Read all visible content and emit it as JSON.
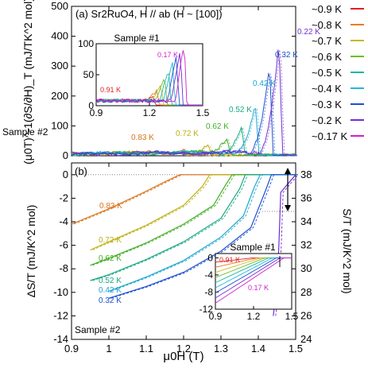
{
  "chart_data": [
    {
      "type": "line",
      "panel": "(a)",
      "title": "Sr2RuO4, H // ab (H ~ [100])",
      "ylabel": "(μ0T)^-1(∂S/∂H)_T (mJ/TK^2 mol)",
      "xlim": [
        0.9,
        1.5
      ],
      "ylim": [
        0,
        500
      ],
      "yticks": [
        0,
        100,
        200,
        300,
        400,
        500
      ],
      "x_ticks": [
        0.9,
        1,
        1.1,
        1.2,
        1.3,
        1.4,
        1.5
      ],
      "sample_label": "Sample #2",
      "series": [
        {
          "name": "~0.83 K",
          "color": "#d9731a",
          "peak_x": 1.2,
          "peak_y": 20
        },
        {
          "name": "~0.72 K",
          "color": "#bdb012",
          "peak_x": 1.265,
          "peak_y": 35
        },
        {
          "name": "~0.62 K",
          "color": "#3fae24",
          "peak_x": 1.315,
          "peak_y": 60
        },
        {
          "name": "~0.52 K",
          "color": "#1aa882",
          "peak_x": 1.355,
          "peak_y": 100
        },
        {
          "name": "~0.42 K",
          "color": "#1ca6cf",
          "peak_x": 1.392,
          "peak_y": 170
        },
        {
          "name": "~0.32 K",
          "color": "#1f4fd0",
          "peak_x": 1.43,
          "peak_y": 300
        },
        {
          "name": "~0.22 K",
          "color": "#6f2fd0",
          "peak_x": 1.455,
          "peak_y": 380
        }
      ],
      "annotations": [
        {
          "text": "0.83 K",
          "color": "#d9731a"
        },
        {
          "text": "0.72 K",
          "color": "#bdb012"
        },
        {
          "text": "0.62 K",
          "color": "#3fae24"
        },
        {
          "text": "0.52 K",
          "color": "#1aa882"
        },
        {
          "text": "0.42 K",
          "color": "#1ca6cf"
        },
        {
          "text": "0.32 K",
          "color": "#1f4fd0"
        },
        {
          "text": "0.22 K",
          "color": "#6f2fd0"
        }
      ],
      "inset": {
        "label": "Sample #1",
        "xlim": [
          0.9,
          1.5
        ],
        "ylim": [
          0,
          100
        ],
        "xticks": [
          0.9,
          1.2,
          1.5
        ],
        "yticks": [
          0,
          50,
          100
        ],
        "annotations": [
          {
            "text": "0.91 K",
            "color": "#e02020"
          },
          {
            "text": "0.17 K",
            "color": "#d020d0"
          }
        ]
      }
    },
    {
      "type": "line",
      "panel": "(b)",
      "xlabel": "μ0H (T)",
      "ylabel": "ΔS/T (mJ/K^2 mol)",
      "ylabel_right": "S/T (mJ/K^2 mol)",
      "xlim": [
        0.9,
        1.5
      ],
      "ylim": [
        -14,
        1
      ],
      "yticks": [
        0,
        -2,
        -4,
        -6,
        -8,
        -10,
        -12,
        -14
      ],
      "yticks_right": [
        38,
        36,
        34,
        32,
        30,
        28,
        26,
        24
      ],
      "x_ticks": [
        0.9,
        1,
        1.1,
        1.2,
        1.3,
        1.4,
        1.5
      ],
      "sample_label": "Sample #2",
      "series": [
        {
          "name": "0.83 K",
          "color": "#d9731a",
          "x": [
            0.9,
            1.0,
            1.1,
            1.15,
            1.19,
            1.5
          ],
          "y": [
            -4.2,
            -2.9,
            -1.4,
            -0.6,
            0,
            0
          ]
        },
        {
          "name": "0.72 K",
          "color": "#bdb012",
          "x": [
            0.95,
            1.0,
            1.1,
            1.2,
            1.25,
            1.27,
            1.5
          ],
          "y": [
            -6.4,
            -5.7,
            -4.3,
            -2.6,
            -1.0,
            0,
            0
          ]
        },
        {
          "name": "0.62 K",
          "color": "#3fae24",
          "x": [
            0.95,
            1.0,
            1.1,
            1.2,
            1.28,
            1.31,
            1.33,
            1.5
          ],
          "y": [
            -7.7,
            -7.1,
            -5.8,
            -4.2,
            -2.6,
            -1.0,
            0,
            0
          ]
        },
        {
          "name": "0.52 K",
          "color": "#1aa882",
          "x": [
            0.95,
            1.0,
            1.1,
            1.2,
            1.3,
            1.35,
            1.365,
            1.5
          ],
          "y": [
            -9.0,
            -8.5,
            -7.2,
            -5.7,
            -3.7,
            -1.2,
            0,
            0
          ]
        },
        {
          "name": "0.42 K",
          "color": "#1ca6cf",
          "x": [
            1.0,
            1.1,
            1.2,
            1.3,
            1.36,
            1.39,
            1.405,
            1.5
          ],
          "y": [
            -9.9,
            -8.7,
            -7.3,
            -5.3,
            -3.5,
            -1.0,
            0,
            0
          ]
        },
        {
          "name": "0.32 K",
          "color": "#1f4fd0",
          "x": [
            1.0,
            1.1,
            1.2,
            1.3,
            1.38,
            1.42,
            1.435,
            1.5
          ],
          "y": [
            -10.5,
            -9.5,
            -8.3,
            -6.5,
            -4.5,
            -1.3,
            0,
            0
          ]
        },
        {
          "name": "0.22 K",
          "color": "#6f2fd0",
          "x": [
            1.44,
            1.45,
            1.455,
            1.46,
            1.5
          ],
          "y": [
            -12.0,
            -9.5,
            -6.0,
            -1.5,
            0
          ]
        }
      ],
      "annotations": [
        {
          "text": "0.83 K",
          "color": "#d9731a"
        },
        {
          "text": "0.72 K",
          "color": "#bdb012"
        },
        {
          "text": "0.62 K",
          "color": "#3fae24"
        },
        {
          "text": "0.52 K",
          "color": "#1aa882"
        },
        {
          "text": "0.42 K",
          "color": "#1ca6cf"
        },
        {
          "text": "0.32 K",
          "color": "#1f4fd0"
        },
        {
          "text": "0.22 K",
          "color": "#6f2fd0"
        }
      ],
      "inset": {
        "label": "Sample #1",
        "xlim": [
          0.9,
          1.5
        ],
        "ylim": [
          -12,
          1
        ],
        "xticks": [
          0.9,
          1.2,
          1.5
        ],
        "yticks": [
          0,
          -4,
          -8,
          -12
        ],
        "annotations": [
          {
            "text": "0.91 K",
            "color": "#e02020"
          },
          {
            "text": "0.17 K",
            "color": "#d020d0"
          }
        ]
      }
    }
  ],
  "legend": {
    "placement": "right",
    "entries": [
      {
        "name": "~0.9 K",
        "color": "#e02020"
      },
      {
        "name": "~0.8 K",
        "color": "#e87c1a"
      },
      {
        "name": "~0.7 K",
        "color": "#c8b82a"
      },
      {
        "name": "~0.6 K",
        "color": "#6cbf2a"
      },
      {
        "name": "~0.5 K",
        "color": "#1fb7a0"
      },
      {
        "name": "~0.4 K",
        "color": "#1fb8d8"
      },
      {
        "name": "~0.3 K",
        "color": "#1f4fd0"
      },
      {
        "name": "~0.2 K",
        "color": "#6f2fd0"
      },
      {
        "name": "~0.17 K",
        "color": "#d020d0"
      }
    ]
  }
}
